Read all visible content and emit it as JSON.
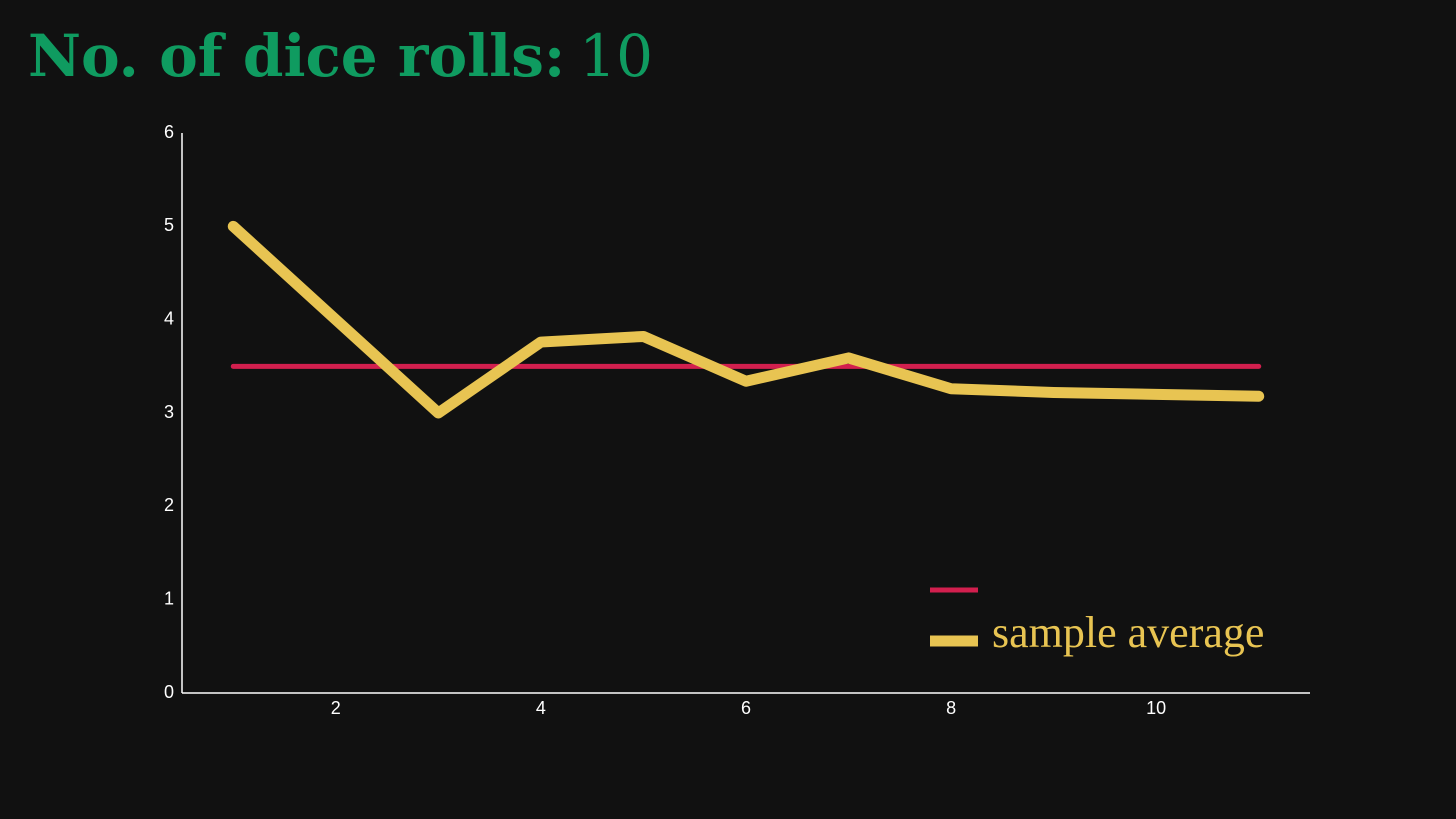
{
  "chart_data": {
    "type": "line",
    "title": "No. of dice rolls:",
    "roll_count": 10,
    "x": [
      1,
      2,
      3,
      4,
      5,
      6,
      7,
      8,
      9,
      10,
      11
    ],
    "series": [
      {
        "color": "#d21f4e",
        "width": 5,
        "values": [
          3.5,
          3.5,
          3.5,
          3.5,
          3.5,
          3.5,
          3.5,
          3.5,
          3.5,
          3.5,
          3.5
        ]
      },
      {
        "name": "sample average",
        "color": "#e8c452",
        "width": 11,
        "values": [
          5,
          4,
          3,
          3.76,
          3.82,
          3.34,
          3.59,
          3.26,
          3.22,
          3.2,
          3.18
        ]
      }
    ],
    "xlim": [
      0.5,
      11.5
    ],
    "xticks": [
      2,
      4,
      6,
      8,
      10
    ],
    "ylim": [
      0,
      6
    ],
    "yticks": [
      0,
      1,
      2,
      3,
      4,
      5,
      6
    ],
    "legend": "lower right"
  }
}
